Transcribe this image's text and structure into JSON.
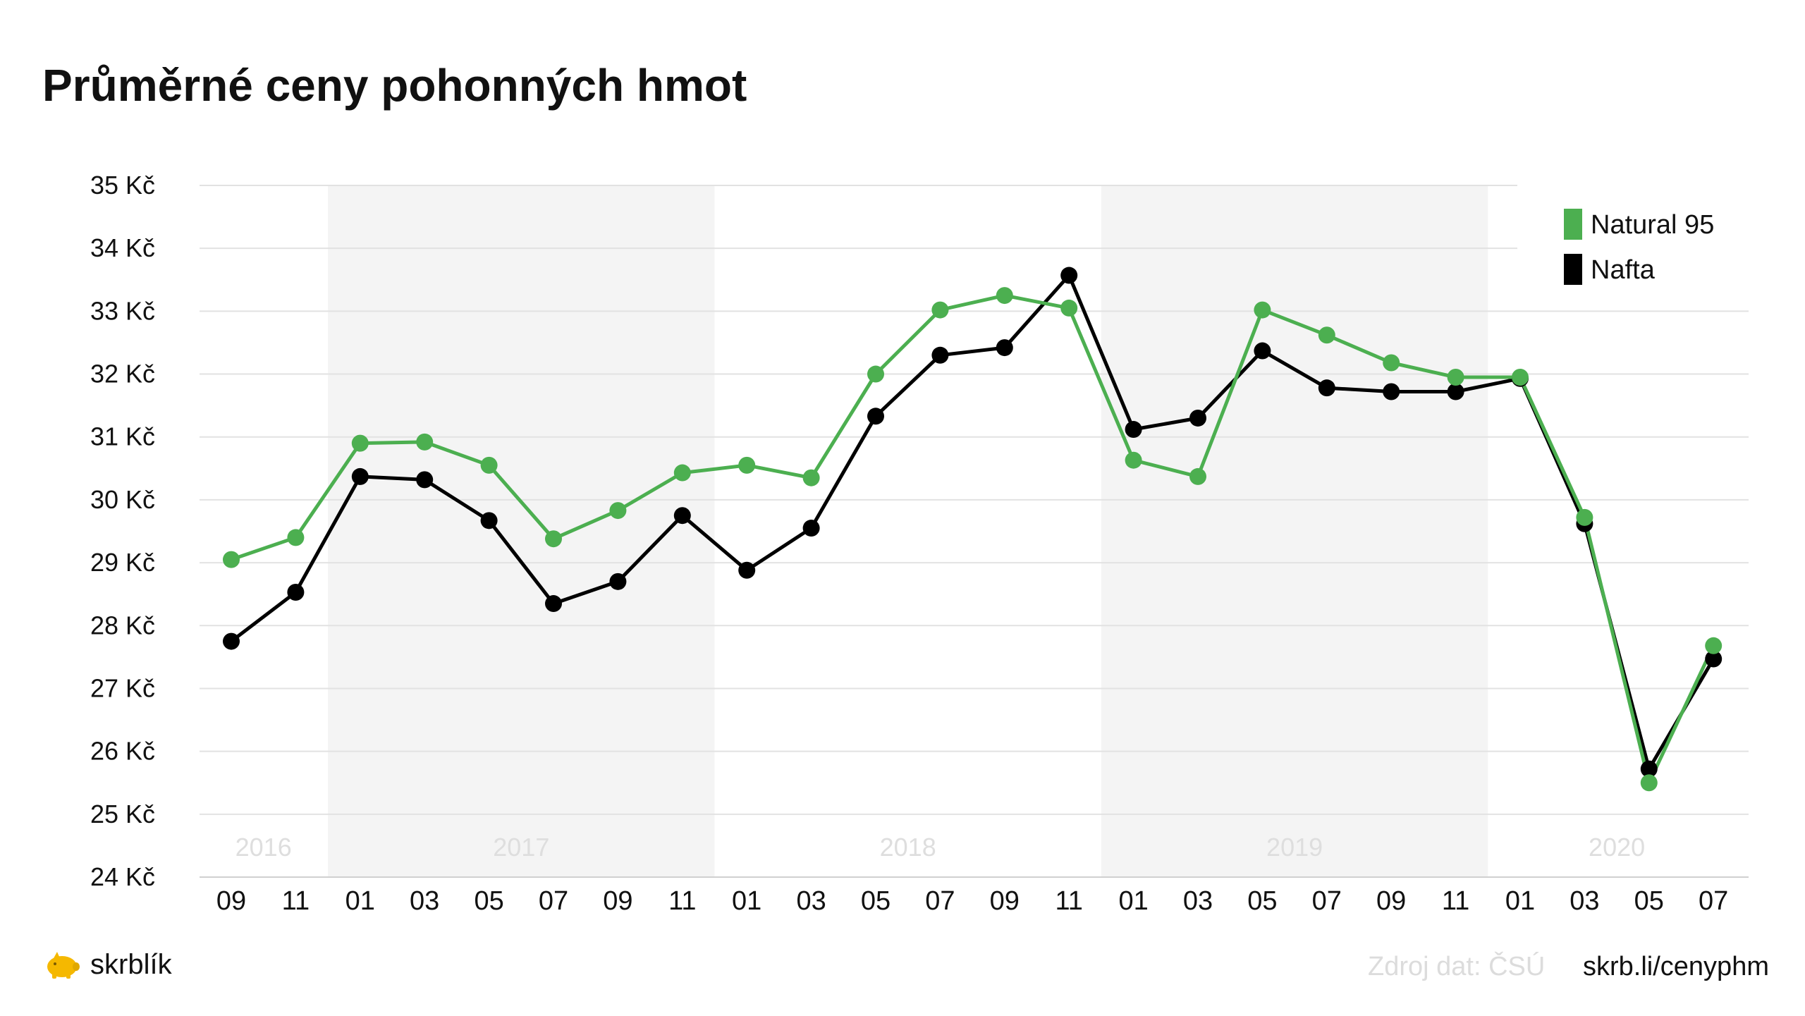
{
  "title": "Průměrné ceny pohonných hmot",
  "colors": {
    "natural95": "#4caf50",
    "nafta": "#000000",
    "band": "#f4f4f4",
    "grid": "#e2e2e2",
    "brand": "#f5b800"
  },
  "footer": {
    "brand_name": "skrblík",
    "brand_icon": "piggy-bank-icon",
    "source": "Zdroj dat: ČSÚ",
    "link": "skrb.li/cenyphm"
  },
  "chart_data": {
    "type": "line",
    "title": "Průměrné ceny pohonných hmot",
    "xlabel": "",
    "ylabel": "",
    "ylim": [
      24,
      35
    ],
    "ytick_labels": [
      "24 Kč",
      "25 Kč",
      "26 Kč",
      "27 Kč",
      "28 Kč",
      "29 Kč",
      "30 Kč",
      "31 Kč",
      "32 Kč",
      "33 Kč",
      "34 Kč",
      "35 Kč"
    ],
    "categories": [
      "09",
      "11",
      "01",
      "03",
      "05",
      "07",
      "09",
      "11",
      "01",
      "03",
      "05",
      "07",
      "09",
      "11",
      "01",
      "03",
      "05",
      "07",
      "09",
      "11",
      "01",
      "03",
      "05",
      "07"
    ],
    "years": [
      {
        "label": "2016",
        "shaded": false
      },
      {
        "label": "2017",
        "shaded": true
      },
      {
        "label": "2018",
        "shaded": false
      },
      {
        "label": "2019",
        "shaded": true
      },
      {
        "label": "2020",
        "shaded": false
      }
    ],
    "year_spans": [
      [
        0,
        1
      ],
      [
        2,
        7
      ],
      [
        8,
        13
      ],
      [
        14,
        19
      ],
      [
        20,
        23
      ]
    ],
    "grid": true,
    "legend_position": "top-right",
    "series": [
      {
        "name": "Natural 95",
        "color": "#4caf50",
        "values": [
          29.05,
          29.4,
          30.9,
          30.92,
          30.55,
          29.38,
          29.83,
          30.43,
          30.55,
          30.35,
          32.0,
          33.02,
          33.25,
          33.05,
          30.63,
          30.37,
          33.02,
          32.62,
          32.18,
          31.95,
          31.95,
          29.72,
          25.5,
          27.68
        ]
      },
      {
        "name": "Nafta",
        "color": "#000000",
        "values": [
          27.75,
          28.53,
          30.37,
          30.32,
          29.67,
          28.35,
          28.7,
          29.75,
          28.88,
          29.55,
          31.33,
          32.3,
          32.42,
          33.57,
          31.12,
          31.3,
          32.37,
          31.78,
          31.72,
          31.72,
          31.93,
          29.62,
          25.72,
          27.47
        ]
      }
    ]
  }
}
